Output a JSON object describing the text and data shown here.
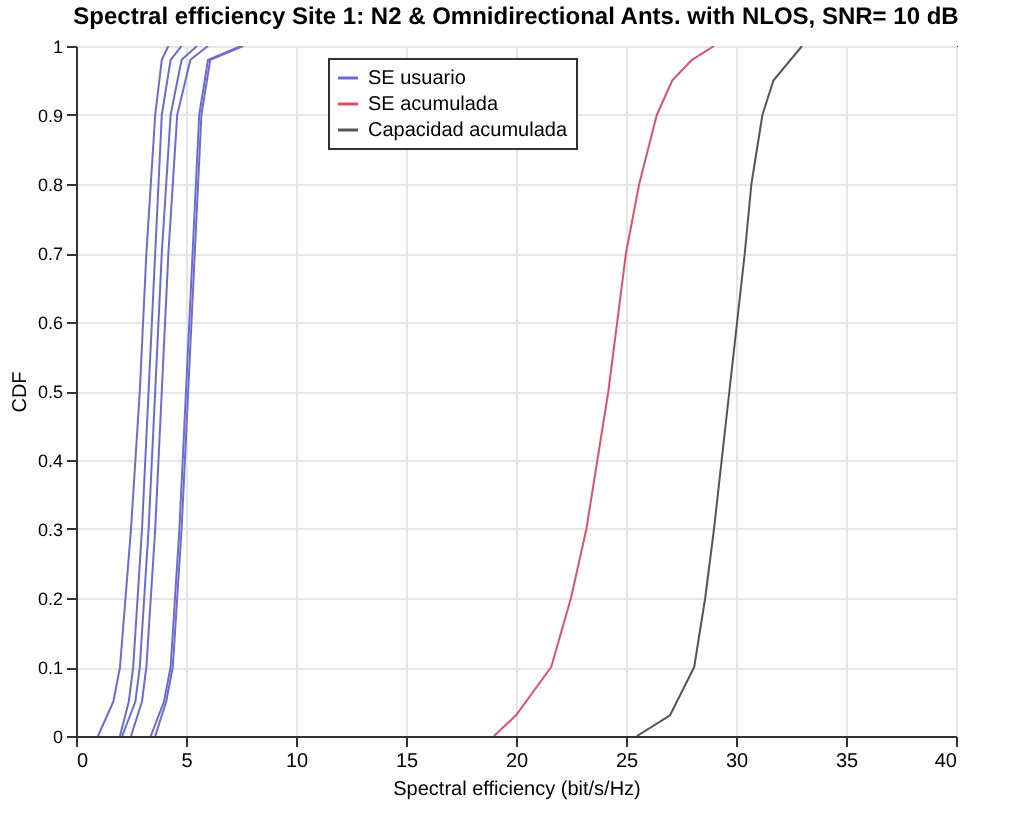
{
  "chart_data": {
    "type": "line",
    "title": "Spectral efficiency Site 1: N2 & Omnidirectional Ants. with NLOS,  SNR= 10 dB",
    "xlabel": "Spectral efficiency (bit/s/Hz)",
    "ylabel": "CDF",
    "xlim": [
      0,
      40
    ],
    "xticks": [
      0,
      5,
      10,
      15,
      20,
      25,
      30,
      35,
      40
    ],
    "ylim": [
      0,
      1
    ],
    "yticks": [
      0,
      0.1,
      0.2,
      0.3,
      0.4,
      0.5,
      0.6,
      0.7,
      0.8,
      0.9,
      1
    ],
    "grid": true,
    "legend": "top",
    "series": [
      {
        "name": "SE usuario",
        "color": "#6b6bd0",
        "x": [
          1.0,
          1.7,
          2.0,
          2.5,
          2.9,
          3.2,
          3.6,
          3.9,
          4.2
        ],
        "values": [
          0,
          0.05,
          0.1,
          0.3,
          0.5,
          0.7,
          0.9,
          0.98,
          1
        ]
      },
      {
        "color": "#6b6bd0",
        "x": [
          2.0,
          2.4,
          2.6,
          3.0,
          3.3,
          3.6,
          3.9,
          4.3,
          4.8
        ],
        "values": [
          0,
          0.05,
          0.1,
          0.3,
          0.5,
          0.7,
          0.9,
          0.98,
          1
        ]
      },
      {
        "color": "#6b6bd0",
        "x": [
          2.1,
          2.7,
          2.9,
          3.3,
          3.6,
          3.9,
          4.3,
          4.8,
          5.5
        ],
        "values": [
          0,
          0.05,
          0.1,
          0.3,
          0.5,
          0.7,
          0.9,
          0.98,
          1
        ]
      },
      {
        "color": "#6b6bd0",
        "x": [
          2.5,
          3.0,
          3.2,
          3.6,
          3.9,
          4.2,
          4.6,
          5.2,
          6.0
        ],
        "values": [
          0,
          0.05,
          0.1,
          0.3,
          0.5,
          0.7,
          0.9,
          0.98,
          1
        ]
      },
      {
        "color": "#6b6bd0",
        "x": [
          3.4,
          4.0,
          4.3,
          4.7,
          5.0,
          5.3,
          5.6,
          6.0,
          7.5
        ],
        "values": [
          0,
          0.05,
          0.1,
          0.3,
          0.5,
          0.7,
          0.9,
          0.98,
          1
        ]
      },
      {
        "color": "#6b6bd0",
        "x": [
          3.6,
          4.1,
          4.4,
          4.8,
          5.1,
          5.4,
          5.7,
          6.1,
          7.6
        ],
        "values": [
          0,
          0.05,
          0.1,
          0.3,
          0.5,
          0.7,
          0.9,
          0.98,
          1
        ]
      },
      {
        "name": "SE acumulada",
        "color": "#d9546b",
        "x": [
          19.0,
          20.0,
          21.6,
          22.5,
          23.2,
          23.7,
          24.2,
          24.6,
          25.0,
          25.6,
          26.4,
          27.1,
          28.0,
          29.0
        ],
        "values": [
          0,
          0.03,
          0.1,
          0.2,
          0.3,
          0.4,
          0.5,
          0.6,
          0.7,
          0.8,
          0.9,
          0.95,
          0.98,
          1
        ]
      },
      {
        "name": "Capacidad acumulada",
        "color": "#555555",
        "x": [
          25.5,
          27.0,
          28.1,
          28.6,
          29.0,
          29.7,
          30.4,
          30.7,
          31.2,
          31.7,
          33.0
        ],
        "values": [
          0,
          0.03,
          0.1,
          0.2,
          0.3,
          0.5,
          0.7,
          0.8,
          0.9,
          0.95,
          1
        ]
      }
    ]
  }
}
